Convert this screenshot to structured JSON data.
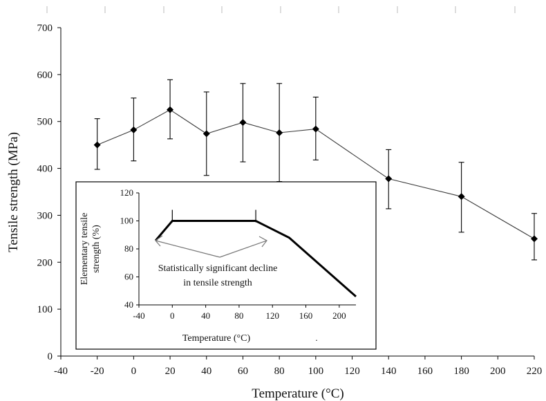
{
  "chart_data": [
    {
      "type": "line",
      "xlabel": "Temperature (°C)",
      "ylabel": "Tensile strength (MPa)",
      "xlim": [
        -40,
        220
      ],
      "ylim": [
        0,
        700
      ],
      "x_ticks": [
        "-40",
        "-20",
        "0",
        "20",
        "40",
        "60",
        "80",
        "100",
        "120",
        "140",
        "160",
        "180",
        "200",
        "220"
      ],
      "y_ticks": [
        "0",
        "100",
        "200",
        "300",
        "400",
        "500",
        "600",
        "700"
      ],
      "marker": "diamond",
      "color": "#000000",
      "series": [
        {
          "x": [
            -20,
            0,
            20,
            40,
            60,
            80,
            100,
            140,
            180,
            220
          ],
          "y": [
            450,
            482,
            525,
            474,
            498,
            476,
            484,
            378,
            340,
            250
          ],
          "error_low": [
            398,
            416,
            463,
            385,
            414,
            372,
            418,
            314,
            264,
            205
          ],
          "error_high": [
            506,
            550,
            589,
            563,
            581,
            581,
            552,
            440,
            413,
            304
          ]
        }
      ]
    },
    {
      "type": "line",
      "xlabel": "Temperature (°C)",
      "ylabel_lines": [
        "Elementary tensile",
        "strength (%)"
      ],
      "xlim": [
        -40,
        220
      ],
      "ylim": [
        40,
        120
      ],
      "x_ticks": [
        "-40",
        "0",
        "40",
        "80",
        "120",
        "160",
        "200"
      ],
      "y_ticks": [
        "40",
        "60",
        "80",
        "100",
        "120"
      ],
      "series": [
        {
          "x": [
            -20,
            0,
            100,
            140,
            220
          ],
          "y": [
            86,
            100,
            100,
            88,
            46
          ]
        }
      ],
      "vertical_marks_at": [
        0,
        100
      ],
      "annotation_lines": [
        "Statistically significant decline",
        "in tensile strength"
      ],
      "dot": "."
    }
  ]
}
